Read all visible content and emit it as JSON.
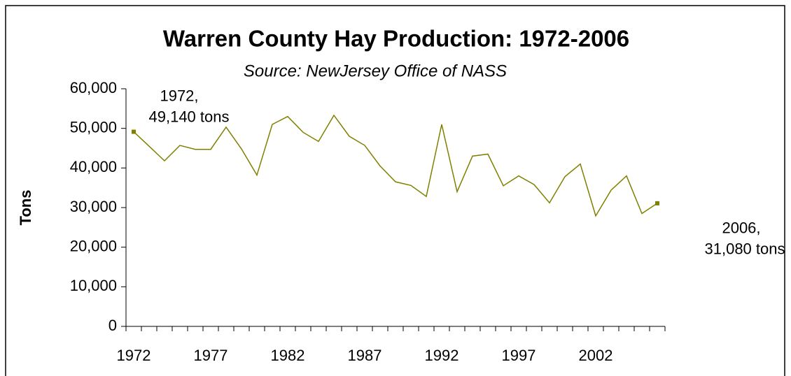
{
  "chart_data": {
    "type": "line",
    "title": "Warren County Hay Production: 1972-2006",
    "subtitle": "Source: NewJersey Office of NASS",
    "y_label": "Tons",
    "categories": [
      "1972",
      null,
      null,
      null,
      null,
      "1977",
      null,
      null,
      null,
      null,
      "1982",
      null,
      null,
      null,
      null,
      "1987",
      null,
      null,
      null,
      null,
      "1992",
      null,
      null,
      null,
      null,
      "1997",
      null,
      null,
      null,
      null,
      "2002",
      null,
      null,
      null,
      null
    ],
    "series": [
      {
        "name": "Hay Production",
        "color": "#808000",
        "values": [
          49140,
          45500,
          41800,
          45700,
          44700,
          44700,
          50300,
          44800,
          38200,
          51000,
          53000,
          49000,
          46700,
          53300,
          48000,
          45700,
          40500,
          36500,
          35600,
          32800,
          51000,
          34000,
          43000,
          43500,
          35500,
          38000,
          35800,
          31200,
          37800,
          41000,
          27900,
          34400,
          38000,
          28500,
          31080
        ],
        "value_labels": [
          [
            "1972,",
            "49,140 tons"
          ],
          null,
          null,
          null,
          null,
          null,
          null,
          null,
          null,
          null,
          null,
          null,
          null,
          null,
          null,
          null,
          null,
          null,
          null,
          null,
          null,
          null,
          null,
          null,
          null,
          null,
          null,
          null,
          null,
          null,
          null,
          null,
          null,
          null,
          [
            "2006,",
            "31,080 tons"
          ]
        ]
      }
    ],
    "ylim": [
      0,
      60000
    ],
    "yticks": [
      0,
      {
        "value": 10000,
        "label": "10,000"
      },
      {
        "value": 20000,
        "label": "20,000"
      },
      {
        "value": 30000,
        "label": "30,000"
      },
      {
        "value": 40000,
        "label": "40,000"
      },
      {
        "value": 50000,
        "label": "50,000"
      },
      {
        "value": 60000,
        "label": "60,000"
      }
    ],
    "grid": false
  }
}
